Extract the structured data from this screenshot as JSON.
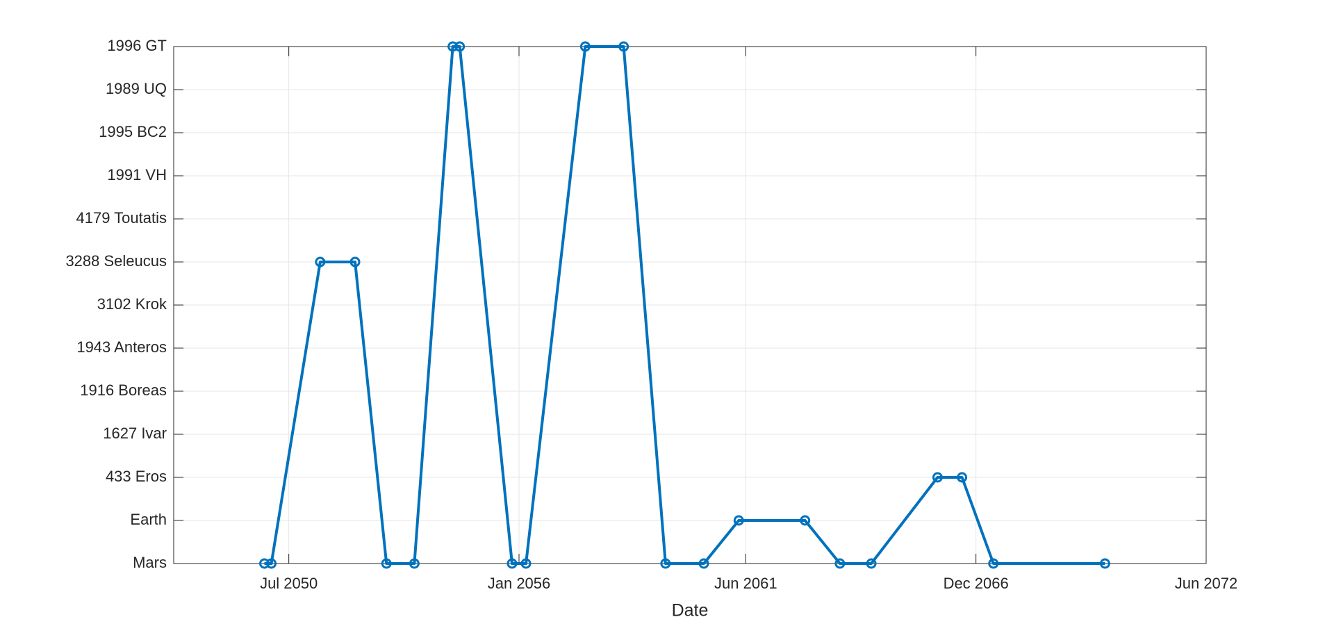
{
  "chart_data": {
    "type": "line",
    "xlabel": "Date",
    "x": [
      "2049-12",
      "2050-02",
      "2051-04",
      "2052-02",
      "2052-11",
      "2053-07",
      "2054-06",
      "2054-08",
      "2055-11",
      "2056-03",
      "2057-08",
      "2058-07",
      "2059-07",
      "2060-06",
      "2061-04",
      "2062-11",
      "2063-09",
      "2064-06",
      "2066-01",
      "2066-08",
      "2067-05",
      "2070-01"
    ],
    "values": [
      0,
      0,
      7,
      7,
      0,
      0,
      12,
      12,
      0,
      0,
      12,
      12,
      0,
      0,
      1,
      1,
      0,
      0,
      2,
      2,
      0,
      0
    ],
    "color": "#0072bd",
    "marker": "circle",
    "xlim": [
      "2047-10",
      "2072-06"
    ],
    "xticks": [
      {
        "value": "2050-07",
        "label": "Jul 2050"
      },
      {
        "value": "2056-01",
        "label": "Jan 2056"
      },
      {
        "value": "2061-06",
        "label": "Jun 2061"
      },
      {
        "value": "2066-12",
        "label": "Dec 2066"
      },
      {
        "value": "2072-06",
        "label": "Jun 2072"
      }
    ],
    "ylim": [
      0,
      12
    ],
    "yticks": [
      {
        "value": 0,
        "label": "Mars"
      },
      {
        "value": 1,
        "label": "Earth"
      },
      {
        "value": 2,
        "label": "433 Eros"
      },
      {
        "value": 3,
        "label": "1627 Ivar"
      },
      {
        "value": 4,
        "label": "1916 Boreas"
      },
      {
        "value": 5,
        "label": "1943 Anteros"
      },
      {
        "value": 6,
        "label": "3102 Krok"
      },
      {
        "value": 7,
        "label": "3288 Seleucus"
      },
      {
        "value": 8,
        "label": "4179 Toutatis"
      },
      {
        "value": 9,
        "label": "1991 VH"
      },
      {
        "value": 10,
        "label": "1995 BC2"
      },
      {
        "value": 11,
        "label": "1989 UQ"
      },
      {
        "value": 12,
        "label": "1996 GT"
      }
    ],
    "grid": true
  }
}
